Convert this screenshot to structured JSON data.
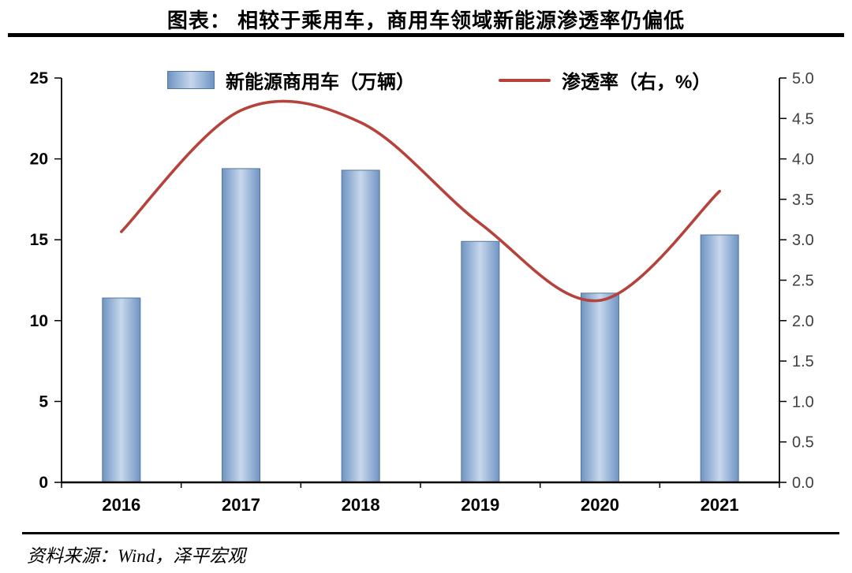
{
  "title": "图表：  相较于乘用车，商用车领域新能源渗透率仍偏低",
  "source": "资料来源：Wind，泽平宏观",
  "legend": {
    "bar_label": "新能源商用车（万辆）",
    "line_label": "渗透率（右，%）"
  },
  "colors": {
    "line": "#b5433c",
    "bar_border": "#54779f",
    "bar_gradient": [
      "#7093c1",
      "#8fadd2",
      "#c7d7ec",
      "#8fadd2",
      "#7093c1"
    ],
    "bar_gradient_offsets": [
      0,
      18,
      50,
      82,
      100
    ],
    "axis": "#000000"
  },
  "chart_data": {
    "type": "bar",
    "subtype": "bar+line combo, dual axis",
    "title": "图表：  相较于乘用车，商用车领域新能源渗透率仍偏低",
    "categories": [
      "2016",
      "2017",
      "2018",
      "2019",
      "2020",
      "2021"
    ],
    "series": [
      {
        "name": "新能源商用车（万辆）",
        "type": "bar",
        "axis": "left",
        "values": [
          11.4,
          19.4,
          19.3,
          14.9,
          11.7,
          15.3
        ]
      },
      {
        "name": "渗透率（右，%）",
        "type": "line",
        "axis": "right",
        "values": [
          3.1,
          4.6,
          4.45,
          3.2,
          2.25,
          3.6
        ]
      }
    ],
    "left_axis": {
      "min": 0,
      "max": 25,
      "step": 5,
      "ticks": [
        "0",
        "5",
        "10",
        "15",
        "20",
        "25"
      ]
    },
    "right_axis": {
      "min": 0,
      "max": 5,
      "step": 0.5,
      "ticks": [
        "0.0",
        "0.5",
        "1.0",
        "1.5",
        "2.0",
        "2.5",
        "3.0",
        "3.5",
        "4.0",
        "4.5",
        "5.0"
      ]
    },
    "grid": false,
    "legend_position": "top",
    "xlabel": "",
    "ylabel_left": "万辆",
    "ylabel_right": "%"
  }
}
